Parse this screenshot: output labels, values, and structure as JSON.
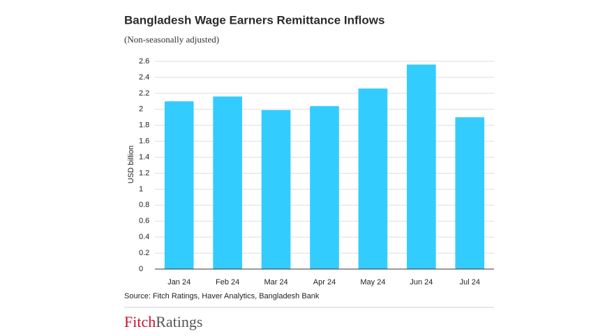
{
  "chart_data": {
    "type": "bar",
    "title": "Bangladesh Wage Earners Remittance Inflows",
    "subtitle": "(Non-seasonally adjusted)",
    "y_label": "USD billion",
    "categories": [
      "Jan 24",
      "Feb 24",
      "Mar 24",
      "Apr 24",
      "May 24",
      "Jun 24",
      "Jul 24"
    ],
    "values": [
      2.1,
      2.16,
      1.99,
      2.04,
      2.26,
      2.56,
      1.9
    ],
    "color": "#33ccff",
    "ylim": [
      0,
      2.6
    ],
    "yticks": [
      0,
      0.2,
      0.4,
      0.6,
      0.8,
      1,
      1.2,
      1.4,
      1.6,
      1.8,
      2,
      2.2,
      2.4,
      2.6
    ],
    "grid": true,
    "source": "Source: Fitch Ratings, Haver Analytics, Bangladesh Bank"
  },
  "logo": {
    "first": "Fitch",
    "second": "Ratings"
  }
}
